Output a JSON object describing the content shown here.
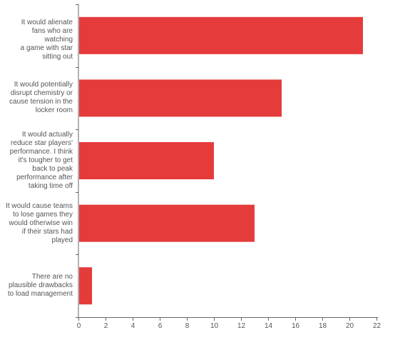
{
  "chart_data": {
    "type": "bar",
    "orientation": "horizontal",
    "categories": [
      "It would alienate fans who are watching a game with star sitting out",
      "It would potentially disrupt chemistry or cause tension in the locker room",
      "It would actually reduce star players' performance. I think it's tougher to get back to peak performance after taking time off",
      "It would cause teams to lose games they would otherwise win if their stars had played",
      "There are no plausible drawbacks to load management"
    ],
    "category_lines": [
      [
        "It would alienate",
        "fans who are watching",
        "a game with star",
        "sitting out"
      ],
      [
        "It would potentially",
        "disrupt chemistry or",
        "cause tension in the",
        "locker room"
      ],
      [
        "It would actually",
        "reduce star players'",
        "performance. I think",
        "it's tougher to get",
        "back to peak",
        "performance after",
        "taking time off"
      ],
      [
        "It would cause teams",
        "to lose games they",
        "would otherwise win",
        "if their stars had",
        "played"
      ],
      [
        "There are no",
        "plausible drawbacks",
        "to load management"
      ]
    ],
    "values": [
      21,
      15,
      10,
      13,
      1
    ],
    "xlim": [
      0,
      22
    ],
    "x_ticks": [
      "0",
      "2",
      "4",
      "6",
      "8",
      "10",
      "12",
      "14",
      "16",
      "18",
      "20",
      "22"
    ],
    "bar_color": "#e53b3b",
    "grid": false,
    "title": "",
    "xlabel": "",
    "ylabel": ""
  }
}
